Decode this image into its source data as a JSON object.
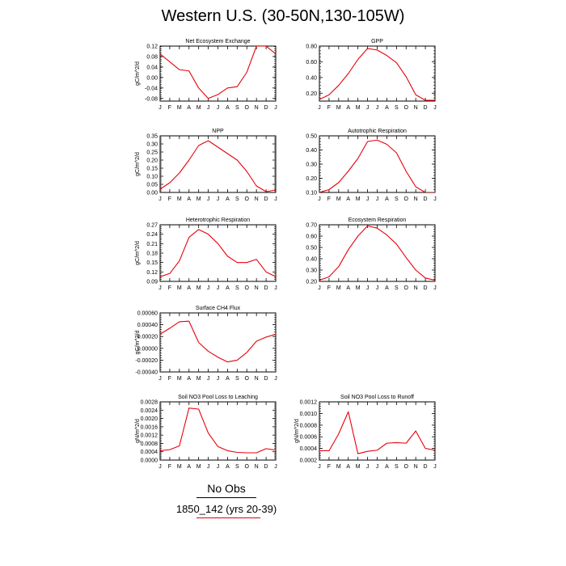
{
  "title": "Western U.S. (30-50N,130-105W)",
  "legend": {
    "title": "No Obs",
    "label": "1850_142 (yrs 20-39)"
  },
  "colors": {
    "line": "#e8000b",
    "axes": "#000000",
    "background": "#ffffff"
  },
  "chart_data": [
    {
      "type": "line",
      "title": "Net Ecosystem Exchange",
      "ylabel": "gC/m^2/d",
      "xlabel": "",
      "x": [
        "J",
        "F",
        "M",
        "A",
        "M",
        "J",
        "J",
        "A",
        "S",
        "O",
        "N",
        "D",
        "J"
      ],
      "ylim": [
        -0.09,
        0.12
      ],
      "yticks": [
        -0.08,
        -0.04,
        0.0,
        0.04,
        0.08,
        0.12
      ],
      "ytick_labels": [
        "-0.08",
        "-0.04",
        "0.00",
        "0.04",
        "0.08",
        "0.12"
      ],
      "series": [
        {
          "values": [
            0.09,
            0.06,
            0.03,
            0.025,
            -0.04,
            -0.08,
            -0.065,
            -0.04,
            -0.035,
            0.02,
            0.12,
            0.12,
            0.09
          ]
        }
      ]
    },
    {
      "type": "line",
      "title": "GPP",
      "ylabel": "",
      "xlabel": "",
      "x": [
        "J",
        "F",
        "M",
        "A",
        "M",
        "J",
        "J",
        "A",
        "S",
        "O",
        "N",
        "D",
        "J"
      ],
      "ylim": [
        0.1,
        0.8
      ],
      "yticks": [
        0.2,
        0.4,
        0.6,
        0.8
      ],
      "ytick_labels": [
        "0.20",
        "0.40",
        "0.60",
        "0.80"
      ],
      "series": [
        {
          "values": [
            0.12,
            0.18,
            0.3,
            0.45,
            0.63,
            0.77,
            0.75,
            0.68,
            0.59,
            0.41,
            0.18,
            0.11,
            0.11
          ]
        }
      ]
    },
    {
      "type": "line",
      "title": "NPP",
      "ylabel": "gC/m^2/d",
      "xlabel": "",
      "x": [
        "J",
        "F",
        "M",
        "A",
        "M",
        "J",
        "J",
        "A",
        "S",
        "O",
        "N",
        "D",
        "J"
      ],
      "ylim": [
        0.0,
        0.35
      ],
      "yticks": [
        0.0,
        0.05,
        0.1,
        0.15,
        0.2,
        0.25,
        0.3,
        0.35
      ],
      "ytick_labels": [
        "0.00",
        "0.05",
        "0.10",
        "0.15",
        "0.20",
        "0.25",
        "0.30",
        "0.35"
      ],
      "series": [
        {
          "values": [
            0.02,
            0.06,
            0.12,
            0.2,
            0.29,
            0.32,
            0.28,
            0.24,
            0.2,
            0.13,
            0.04,
            0.005,
            0.015
          ]
        }
      ]
    },
    {
      "type": "line",
      "title": "Autotrophic Respiration",
      "ylabel": "",
      "xlabel": "",
      "x": [
        "J",
        "F",
        "M",
        "A",
        "M",
        "J",
        "J",
        "A",
        "S",
        "O",
        "N",
        "D",
        "J"
      ],
      "ylim": [
        0.1,
        0.5
      ],
      "yticks": [
        0.1,
        0.2,
        0.3,
        0.4,
        0.5
      ],
      "ytick_labels": [
        "0.10",
        "0.20",
        "0.30",
        "0.40",
        "0.50"
      ],
      "series": [
        {
          "values": [
            0.1,
            0.12,
            0.17,
            0.25,
            0.34,
            0.46,
            0.47,
            0.44,
            0.38,
            0.25,
            0.14,
            0.1,
            0.1
          ]
        }
      ]
    },
    {
      "type": "line",
      "title": "Heterotrophic Respiration",
      "ylabel": "gC/m^2/d",
      "xlabel": "",
      "x": [
        "J",
        "F",
        "M",
        "A",
        "M",
        "J",
        "J",
        "A",
        "S",
        "O",
        "N",
        "D",
        "J"
      ],
      "ylim": [
        0.09,
        0.27
      ],
      "yticks": [
        0.09,
        0.12,
        0.15,
        0.18,
        0.21,
        0.24,
        0.27
      ],
      "ytick_labels": [
        "0.09",
        "0.12",
        "0.15",
        "0.18",
        "0.21",
        "0.24",
        "0.27"
      ],
      "series": [
        {
          "values": [
            0.105,
            0.115,
            0.155,
            0.23,
            0.255,
            0.24,
            0.21,
            0.17,
            0.15,
            0.15,
            0.16,
            0.12,
            0.105
          ]
        }
      ]
    },
    {
      "type": "line",
      "title": "Ecosystem Respiration",
      "ylabel": "",
      "xlabel": "",
      "x": [
        "J",
        "F",
        "M",
        "A",
        "M",
        "J",
        "J",
        "A",
        "S",
        "O",
        "N",
        "D",
        "J"
      ],
      "ylim": [
        0.2,
        0.7
      ],
      "yticks": [
        0.2,
        0.3,
        0.4,
        0.5,
        0.6,
        0.7
      ],
      "ytick_labels": [
        "0.20",
        "0.30",
        "0.40",
        "0.50",
        "0.60",
        "0.70"
      ],
      "series": [
        {
          "values": [
            0.21,
            0.24,
            0.33,
            0.48,
            0.6,
            0.69,
            0.67,
            0.61,
            0.53,
            0.41,
            0.3,
            0.23,
            0.21
          ]
        }
      ]
    },
    {
      "type": "line",
      "title": "Surface CH4 Flux",
      "ylabel": "gC/m^2/d",
      "xlabel": "",
      "x": [
        "J",
        "F",
        "M",
        "A",
        "M",
        "J",
        "J",
        "A",
        "S",
        "O",
        "N",
        "D",
        "J"
      ],
      "ylim": [
        -0.0004,
        0.0006
      ],
      "yticks": [
        -0.0004,
        -0.0002,
        0.0,
        0.0002,
        0.0004,
        0.0006
      ],
      "ytick_labels": [
        "-0.00040",
        "-0.00020",
        "0.00000",
        "0.00020",
        "0.00040",
        "0.00060"
      ],
      "series": [
        {
          "values": [
            0.00024,
            0.00034,
            0.00045,
            0.00046,
            0.0001,
            -5e-05,
            -0.00015,
            -0.00023,
            -0.0002,
            -7e-05,
            0.00012,
            0.00019,
            0.00024
          ]
        }
      ]
    },
    {
      "type": "line",
      "title": "Soil NO3 Pool Loss to Leaching",
      "ylabel": "gN/m^2/d",
      "xlabel": "",
      "x": [
        "J",
        "F",
        "M",
        "A",
        "M",
        "J",
        "J",
        "A",
        "S",
        "O",
        "N",
        "D",
        "J"
      ],
      "ylim": [
        0.0,
        0.0028
      ],
      "yticks": [
        0.0,
        0.0004,
        0.0008,
        0.0012,
        0.0016,
        0.002,
        0.0024,
        0.0028
      ],
      "ytick_labels": [
        "0.0000",
        "0.0004",
        "0.0008",
        "0.0012",
        "0.0016",
        "0.0020",
        "0.0024",
        "0.0028"
      ],
      "series": [
        {
          "values": [
            0.00045,
            0.0005,
            0.00068,
            0.0025,
            0.00245,
            0.0013,
            0.00065,
            0.00045,
            0.00037,
            0.00035,
            0.00035,
            0.00055,
            0.00048
          ]
        }
      ]
    },
    {
      "type": "line",
      "title": "Soil NO3 Pool Loss to Runoff",
      "ylabel": "gN/m^2/d",
      "xlabel": "",
      "x": [
        "J",
        "F",
        "M",
        "A",
        "M",
        "J",
        "J",
        "A",
        "S",
        "O",
        "N",
        "D",
        "J"
      ],
      "ylim": [
        0.0002,
        0.0012
      ],
      "yticks": [
        0.0002,
        0.0004,
        0.0006,
        0.0008,
        0.001,
        0.0012
      ],
      "ytick_labels": [
        "0.0002",
        "0.0004",
        "0.0006",
        "0.0008",
        "0.0010",
        "0.0012"
      ],
      "series": [
        {
          "values": [
            0.00036,
            0.00036,
            0.00065,
            0.00103,
            0.00031,
            0.00035,
            0.00037,
            0.00049,
            0.0005,
            0.00049,
            0.0007,
            0.0004,
            0.00037
          ]
        }
      ]
    }
  ]
}
